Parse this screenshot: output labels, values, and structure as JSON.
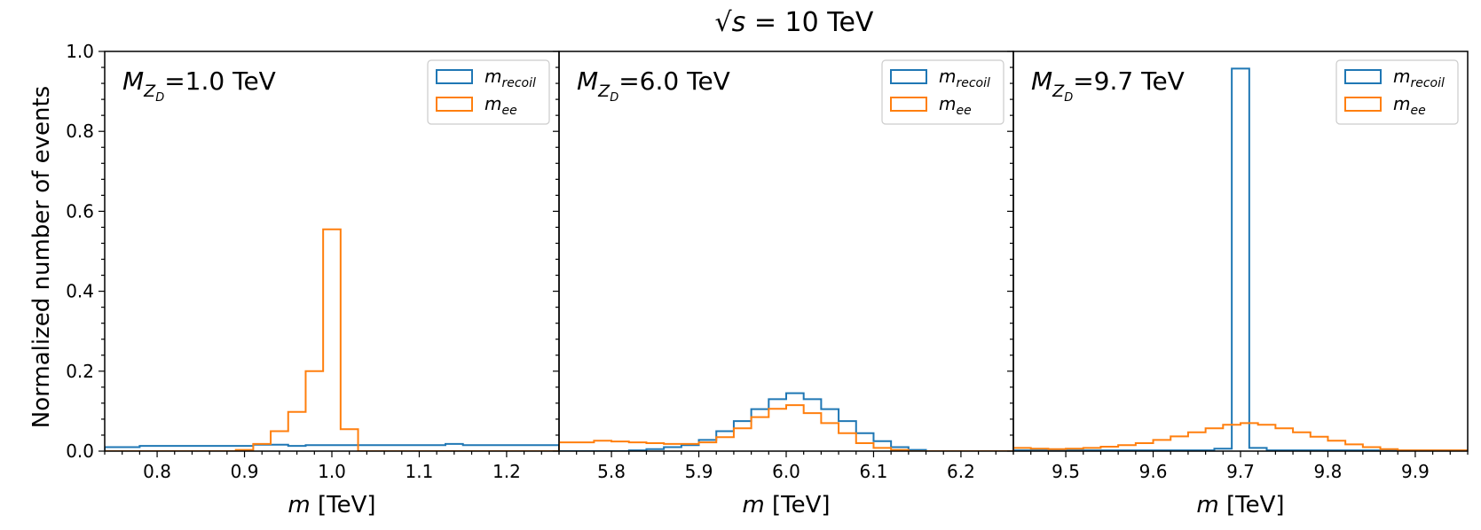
{
  "title": "√s = 10 TeV",
  "title_parts": {
    "sqrt": "√",
    "var": "s",
    "rest": " = 10 TeV"
  },
  "ylabel": "Normalized number of events",
  "colors": {
    "recoil": "#1f77b4",
    "ee": "#ff7f0e"
  },
  "chart_data": [
    {
      "type": "histogram",
      "annotation": {
        "mass_symbol": "M",
        "sub": "Z",
        "subsub": "D",
        "value": "=1.0 TeV"
      },
      "xlabel_var": "m",
      "xlabel_unit": " [TeV]",
      "xlim": [
        0.74,
        1.26
      ],
      "ylim": [
        0,
        1.0
      ],
      "xticks": [
        0.8,
        0.9,
        1.0,
        1.1,
        1.2
      ],
      "xtick_labels": [
        "0.8",
        "0.9",
        "1.0",
        "1.1",
        "1.2"
      ],
      "yticks": [
        0.0,
        0.2,
        0.4,
        0.6,
        0.8,
        1.0
      ],
      "ytick_labels": [
        "0.0",
        "0.2",
        "0.4",
        "0.6",
        "0.8",
        "1.0"
      ],
      "legend": {
        "position": "top-right",
        "entries": [
          {
            "series": "recoil",
            "base": "m",
            "sub": "recoil"
          },
          {
            "series": "ee",
            "base": "m",
            "sub": "ee"
          }
        ]
      },
      "series": [
        {
          "name": "m_recoil",
          "color_key": "recoil",
          "edges": [
            0.74,
            0.78,
            0.87,
            0.91,
            0.95,
            0.97,
            1.13,
            1.15,
            1.26
          ],
          "values": [
            0.01,
            0.013,
            0.013,
            0.016,
            0.013,
            0.015,
            0.018,
            0.015
          ]
        },
        {
          "name": "m_ee",
          "color_key": "ee",
          "edges": [
            0.74,
            0.89,
            0.91,
            0.93,
            0.95,
            0.97,
            0.99,
            1.01,
            1.03,
            1.26
          ],
          "values": [
            0.0,
            0.003,
            0.018,
            0.05,
            0.098,
            0.2,
            0.555,
            0.055,
            0.0
          ]
        }
      ]
    },
    {
      "type": "histogram",
      "annotation": {
        "mass_symbol": "M",
        "sub": "Z",
        "subsub": "D",
        "value": "=6.0 TeV"
      },
      "xlabel_var": "m",
      "xlabel_unit": " [TeV]",
      "xlim": [
        5.74,
        6.26
      ],
      "ylim": [
        0,
        1.0
      ],
      "xticks": [
        5.8,
        5.9,
        6.0,
        6.1,
        6.2
      ],
      "xtick_labels": [
        "5.8",
        "5.9",
        "6.0",
        "6.1",
        "6.2"
      ],
      "yticks": [
        0.0,
        0.2,
        0.4,
        0.6,
        0.8,
        1.0
      ],
      "legend": {
        "position": "top-right",
        "entries": [
          {
            "series": "recoil",
            "base": "m",
            "sub": "recoil"
          },
          {
            "series": "ee",
            "base": "m",
            "sub": "ee"
          }
        ]
      },
      "series": [
        {
          "name": "m_recoil",
          "color_key": "recoil",
          "edges": [
            5.74,
            5.82,
            5.84,
            5.86,
            5.88,
            5.9,
            5.92,
            5.94,
            5.96,
            5.98,
            6.0,
            6.02,
            6.04,
            6.06,
            6.08,
            6.1,
            6.12,
            6.14,
            6.16,
            6.26
          ],
          "values": [
            0.0,
            0.002,
            0.005,
            0.01,
            0.015,
            0.028,
            0.05,
            0.075,
            0.105,
            0.13,
            0.145,
            0.13,
            0.105,
            0.075,
            0.045,
            0.025,
            0.01,
            0.003,
            0.0
          ]
        },
        {
          "name": "m_ee",
          "color_key": "ee",
          "edges": [
            5.74,
            5.76,
            5.78,
            5.8,
            5.82,
            5.84,
            5.86,
            5.88,
            5.9,
            5.92,
            5.94,
            5.96,
            5.98,
            6.0,
            6.02,
            6.04,
            6.06,
            6.08,
            6.1,
            6.12,
            6.14,
            6.26
          ],
          "values": [
            0.022,
            0.022,
            0.026,
            0.024,
            0.022,
            0.02,
            0.018,
            0.018,
            0.022,
            0.035,
            0.057,
            0.085,
            0.106,
            0.115,
            0.095,
            0.07,
            0.045,
            0.02,
            0.008,
            0.003,
            0.0
          ]
        }
      ]
    },
    {
      "type": "histogram",
      "annotation": {
        "mass_symbol": "M",
        "sub": "Z",
        "subsub": "D",
        "value": "=9.7 TeV"
      },
      "xlabel_var": "m",
      "xlabel_unit": " [TeV]",
      "xlim": [
        9.44,
        9.96
      ],
      "ylim": [
        0,
        1.0
      ],
      "xticks": [
        9.5,
        9.6,
        9.7,
        9.8,
        9.9
      ],
      "xtick_labels": [
        "9.5",
        "9.6",
        "9.7",
        "9.8",
        "9.9"
      ],
      "yticks": [
        0.0,
        0.2,
        0.4,
        0.6,
        0.8,
        1.0
      ],
      "legend": {
        "position": "top-right",
        "entries": [
          {
            "series": "recoil",
            "base": "m",
            "sub": "recoil"
          },
          {
            "series": "ee",
            "base": "m",
            "sub": "ee"
          }
        ]
      },
      "series": [
        {
          "name": "m_recoil",
          "color_key": "recoil",
          "edges": [
            9.44,
            9.67,
            9.69,
            9.71,
            9.73,
            9.96
          ],
          "values": [
            0.002,
            0.006,
            0.957,
            0.008,
            0.002
          ]
        },
        {
          "name": "m_ee",
          "color_key": "ee",
          "edges": [
            9.44,
            9.46,
            9.48,
            9.5,
            9.52,
            9.54,
            9.56,
            9.58,
            9.6,
            9.62,
            9.64,
            9.66,
            9.68,
            9.7,
            9.72,
            9.74,
            9.76,
            9.78,
            9.8,
            9.82,
            9.84,
            9.86,
            9.88,
            9.96
          ],
          "values": [
            0.008,
            0.006,
            0.005,
            0.006,
            0.008,
            0.011,
            0.015,
            0.02,
            0.028,
            0.037,
            0.047,
            0.057,
            0.066,
            0.07,
            0.066,
            0.057,
            0.047,
            0.036,
            0.026,
            0.017,
            0.01,
            0.005,
            0.002
          ]
        }
      ]
    }
  ]
}
